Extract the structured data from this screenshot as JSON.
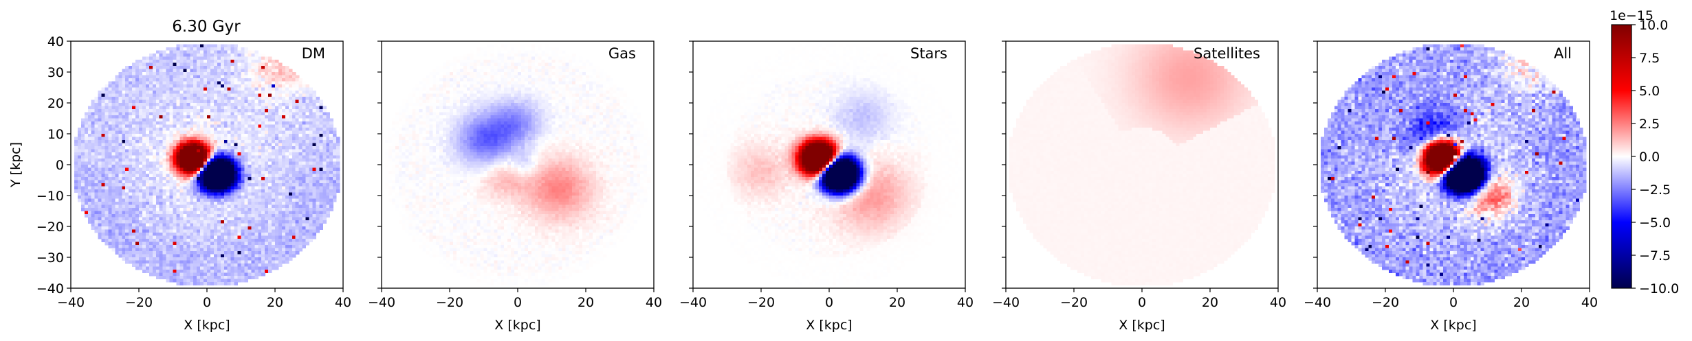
{
  "title": "6.30 Gyr",
  "chart_data": {
    "type": "heatmap",
    "title": "6.30 Gyr",
    "panels": [
      {
        "label": "DM",
        "xlabel": "X [kpc]",
        "ylabel": "Y [kpc]",
        "show_ytick_labels": true
      },
      {
        "label": "Gas",
        "xlabel": "X [kpc]",
        "ylabel": "",
        "show_ytick_labels": false
      },
      {
        "label": "Stars",
        "xlabel": "X [kpc]",
        "ylabel": "",
        "show_ytick_labels": false
      },
      {
        "label": "Satellites",
        "xlabel": "X [kpc]",
        "ylabel": "",
        "show_ytick_labels": false
      },
      {
        "label": "All",
        "xlabel": "X [kpc]",
        "ylabel": "",
        "show_ytick_labels": false
      }
    ],
    "xlim": [
      -40,
      40
    ],
    "ylim": [
      -40,
      40
    ],
    "xticks": [
      -40,
      -20,
      0,
      20,
      40
    ],
    "yticks": [
      -40,
      -30,
      -20,
      -10,
      0,
      10,
      20,
      30,
      40
    ],
    "colorbar": {
      "cmap": "seismic",
      "vmin": -10.0,
      "vmax": 10.0,
      "offset_label": "1e−15",
      "ticks": [
        "10.0",
        "7.5",
        "5.0",
        "2.5",
        "0.0",
        "−2.5",
        "−5.0",
        "−7.5",
        "−10.0"
      ]
    }
  }
}
